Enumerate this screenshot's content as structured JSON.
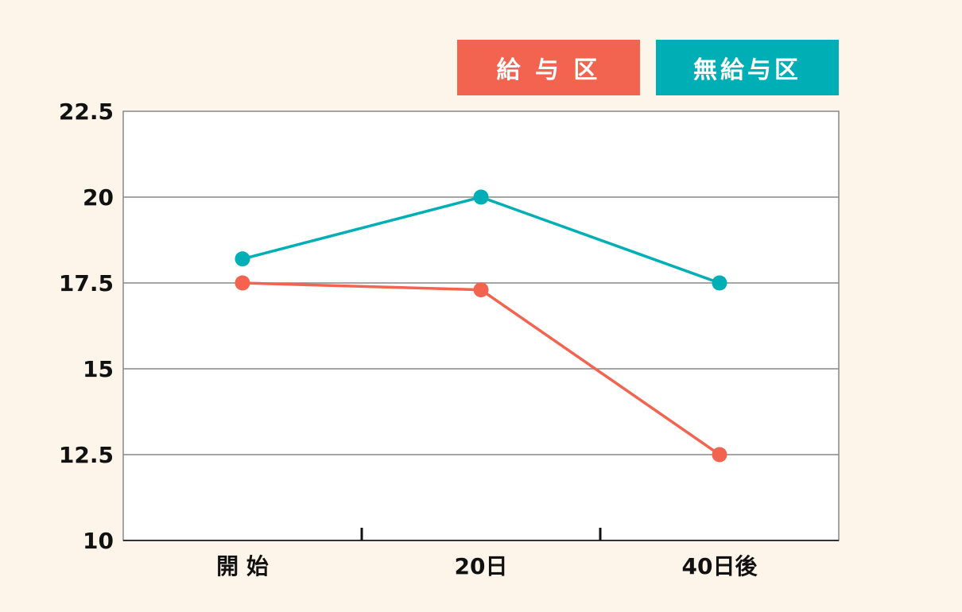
{
  "colors": {
    "background": "#fdf5ea",
    "plot_background": "#ffffff",
    "grid": "#888888",
    "series_paid": "#f26450",
    "series_unpaid": "#00aeb6"
  },
  "chart_data": {
    "type": "line",
    "title": "",
    "xlabel": "",
    "ylabel": "",
    "categories": [
      "開 始",
      "20日",
      "40日後"
    ],
    "ylim": [
      10,
      22.5
    ],
    "yticks": [
      "10",
      "12.5",
      "15",
      "17.5",
      "20",
      "22.5"
    ],
    "grid": true,
    "legend_position": "top-right",
    "series": [
      {
        "name": "給 与 区",
        "color": "#f26450",
        "values": [
          17.5,
          17.3,
          12.5
        ]
      },
      {
        "name": "無給与区",
        "color": "#00aeb6",
        "values": [
          18.2,
          20.0,
          17.5
        ]
      }
    ]
  }
}
